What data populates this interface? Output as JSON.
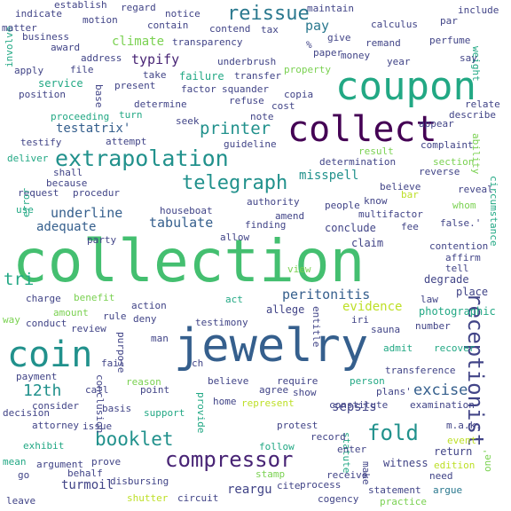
{
  "palette": {
    "yellow": "#bddf26",
    "lime": "#7ad151",
    "green": "#44bf70",
    "teal": "#22a884",
    "cyan": "#21918c",
    "blue": "#2a788e",
    "indigo": "#355f8d",
    "violet": "#414487",
    "purple": "#482475",
    "dark": "#440154"
  },
  "words": [
    {
      "text": "collection",
      "color": "green"
    },
    {
      "text": "jewelry",
      "color": "indigo"
    },
    {
      "text": "coupon",
      "color": "teal"
    },
    {
      "text": "collect",
      "color": "dark"
    },
    {
      "text": "coin",
      "color": "cyan"
    },
    {
      "text": "extrapolation",
      "color": "cyan"
    },
    {
      "text": "compressor",
      "color": "purple"
    },
    {
      "text": "receptionist",
      "color": "violet"
    },
    {
      "text": "telegraph",
      "color": "cyan"
    },
    {
      "text": "reissue",
      "color": "blue"
    },
    {
      "text": "booklet",
      "color": "cyan"
    },
    {
      "text": "fold",
      "color": "cyan"
    },
    {
      "text": "printer",
      "color": "cyan"
    },
    {
      "text": "tri",
      "color": "teal"
    },
    {
      "text": "excise",
      "color": "indigo"
    },
    {
      "text": "12th",
      "color": "cyan"
    },
    {
      "text": "underline",
      "color": "indigo"
    },
    {
      "text": "tabulate",
      "color": "indigo"
    },
    {
      "text": "peritonitis",
      "color": "indigo"
    },
    {
      "text": "typify",
      "color": "purple"
    },
    {
      "text": "misspell",
      "color": "cyan"
    },
    {
      "text": "testatrix'",
      "color": "indigo"
    },
    {
      "text": "adequate",
      "color": "indigo"
    },
    {
      "text": "climate",
      "color": "lime"
    },
    {
      "text": "pay",
      "color": "blue"
    },
    {
      "text": "sepsis",
      "color": "violet"
    },
    {
      "text": "turmoil",
      "color": "violet"
    },
    {
      "text": "reargu",
      "color": "violet"
    },
    {
      "text": "evidence",
      "color": "yellow"
    },
    {
      "text": "photographic",
      "color": "teal"
    },
    {
      "text": "conclude",
      "color": "violet"
    },
    {
      "text": "claim",
      "color": "violet"
    },
    {
      "text": "place",
      "color": "violet"
    },
    {
      "text": "degrade",
      "color": "violet"
    },
    {
      "text": "service",
      "color": "teal"
    },
    {
      "text": "circumstance",
      "color": "teal"
    },
    {
      "text": "cogency",
      "color": "violet"
    },
    {
      "text": "statement",
      "color": "violet"
    },
    {
      "text": "argue",
      "color": "blue"
    },
    {
      "text": "process",
      "color": "violet"
    },
    {
      "text": "cite",
      "color": "violet"
    },
    {
      "text": "circuit",
      "color": "violet"
    },
    {
      "text": "shutter",
      "color": "yellow"
    },
    {
      "text": "leave",
      "color": "violet"
    },
    {
      "text": "go",
      "color": "violet"
    },
    {
      "text": "practice",
      "color": "lime"
    },
    {
      "text": "edition",
      "color": "yellow"
    },
    {
      "text": "one'",
      "color": "lime"
    },
    {
      "text": "need",
      "color": "violet"
    },
    {
      "text": "return",
      "color": "violet"
    },
    {
      "text": "event",
      "color": "yellow"
    },
    {
      "text": "witness",
      "color": "violet"
    },
    {
      "text": "make",
      "color": "violet"
    },
    {
      "text": "statute",
      "color": "teal"
    },
    {
      "text": "enter",
      "color": "violet"
    },
    {
      "text": "receive",
      "color": "violet"
    },
    {
      "text": "record",
      "color": "violet"
    },
    {
      "text": "stamp",
      "color": "lime"
    },
    {
      "text": "follow",
      "color": "teal"
    },
    {
      "text": "disbursing",
      "color": "violet"
    },
    {
      "text": "behalf",
      "color": "violet"
    },
    {
      "text": "prove",
      "color": "violet"
    },
    {
      "text": "argument",
      "color": "violet"
    },
    {
      "text": "mean",
      "color": "teal"
    },
    {
      "text": "exhibit",
      "color": "teal"
    },
    {
      "text": "attorney",
      "color": "violet"
    },
    {
      "text": "decision",
      "color": "violet"
    },
    {
      "text": "issue",
      "color": "violet"
    },
    {
      "text": "consider",
      "color": "violet"
    },
    {
      "text": "payment",
      "color": "violet"
    },
    {
      "text": "call",
      "color": "violet"
    },
    {
      "text": "conclusion",
      "color": "violet"
    },
    {
      "text": "basis",
      "color": "violet"
    },
    {
      "text": "support",
      "color": "teal"
    },
    {
      "text": "provide",
      "color": "teal"
    },
    {
      "text": "home",
      "color": "violet"
    },
    {
      "text": "represent",
      "color": "yellow"
    },
    {
      "text": "protest",
      "color": "violet"
    },
    {
      "text": "show",
      "color": "violet"
    },
    {
      "text": "constitute",
      "color": "violet"
    },
    {
      "text": "examination",
      "color": "violet"
    },
    {
      "text": "m.a.k.",
      "color": "violet"
    },
    {
      "text": "plans'",
      "color": "violet"
    },
    {
      "text": "person",
      "color": "teal"
    },
    {
      "text": "transference",
      "color": "violet"
    },
    {
      "text": "recover",
      "color": "teal"
    },
    {
      "text": "admit",
      "color": "teal"
    },
    {
      "text": "number",
      "color": "violet"
    },
    {
      "text": "sauna",
      "color": "violet"
    },
    {
      "text": "iri",
      "color": "violet"
    },
    {
      "text": "entitle",
      "color": "violet"
    },
    {
      "text": "allege",
      "color": "violet"
    },
    {
      "text": "testimony",
      "color": "violet"
    },
    {
      "text": "deny",
      "color": "violet"
    },
    {
      "text": "action",
      "color": "violet"
    },
    {
      "text": "rule",
      "color": "violet"
    },
    {
      "text": "act",
      "color": "teal"
    },
    {
      "text": "amount",
      "color": "lime"
    },
    {
      "text": "benefit",
      "color": "lime"
    },
    {
      "text": "charge",
      "color": "violet"
    },
    {
      "text": "conduct",
      "color": "violet"
    },
    {
      "text": "review",
      "color": "violet"
    },
    {
      "text": "way",
      "color": "lime"
    },
    {
      "text": "man",
      "color": "violet"
    },
    {
      "text": "purpose",
      "color": "violet"
    },
    {
      "text": "fail",
      "color": "violet"
    },
    {
      "text": "ch",
      "color": "violet"
    },
    {
      "text": "reason",
      "color": "lime"
    },
    {
      "text": "point",
      "color": "violet"
    },
    {
      "text": "believe",
      "color": "violet"
    },
    {
      "text": "agree",
      "color": "violet"
    },
    {
      "text": "require",
      "color": "violet"
    },
    {
      "text": "law",
      "color": "violet"
    },
    {
      "text": "tell",
      "color": "violet"
    },
    {
      "text": "affirm",
      "color": "violet"
    },
    {
      "text": "contention",
      "color": "violet"
    },
    {
      "text": "view",
      "color": "lime"
    },
    {
      "text": "fee",
      "color": "violet"
    },
    {
      "text": "false.'",
      "color": "violet"
    },
    {
      "text": "whom",
      "color": "lime"
    },
    {
      "text": "reveal",
      "color": "violet"
    },
    {
      "text": "reverse",
      "color": "violet"
    },
    {
      "text": "section",
      "color": "lime"
    },
    {
      "text": "ability",
      "color": "lime"
    },
    {
      "text": "complaint",
      "color": "violet"
    },
    {
      "text": "describe",
      "color": "violet"
    },
    {
      "text": "relate",
      "color": "violet"
    },
    {
      "text": "appear",
      "color": "violet"
    },
    {
      "text": "result",
      "color": "lime"
    },
    {
      "text": "determination",
      "color": "violet"
    },
    {
      "text": "believe",
      "color": "violet"
    },
    {
      "text": "know",
      "color": "violet"
    },
    {
      "text": "bar",
      "color": "yellow"
    },
    {
      "text": "multifactor",
      "color": "violet"
    },
    {
      "text": "people",
      "color": "violet"
    },
    {
      "text": "amend",
      "color": "violet"
    },
    {
      "text": "authority",
      "color": "violet"
    },
    {
      "text": "finding",
      "color": "violet"
    },
    {
      "text": "allow",
      "color": "violet"
    },
    {
      "text": "houseboat",
      "color": "violet"
    },
    {
      "text": "party",
      "color": "violet"
    },
    {
      "text": "request",
      "color": "violet"
    },
    {
      "text": "procedur",
      "color": "violet"
    },
    {
      "text": "because",
      "color": "violet"
    },
    {
      "text": "shall",
      "color": "violet"
    },
    {
      "text": "deliver",
      "color": "teal"
    },
    {
      "text": "use",
      "color": "teal"
    },
    {
      "text": "error",
      "color": "teal"
    },
    {
      "text": "testify",
      "color": "violet"
    },
    {
      "text": "attempt",
      "color": "violet"
    },
    {
      "text": "proceeding",
      "color": "teal"
    },
    {
      "text": "turn",
      "color": "teal"
    },
    {
      "text": "seek",
      "color": "violet"
    },
    {
      "text": "guideline",
      "color": "violet"
    },
    {
      "text": "note",
      "color": "violet"
    },
    {
      "text": "determine",
      "color": "violet"
    },
    {
      "text": "cost",
      "color": "violet"
    },
    {
      "text": "refuse",
      "color": "violet"
    },
    {
      "text": "position",
      "color": "violet"
    },
    {
      "text": "base",
      "color": "violet"
    },
    {
      "text": "present",
      "color": "violet"
    },
    {
      "text": "factor",
      "color": "violet"
    },
    {
      "text": "squander",
      "color": "violet"
    },
    {
      "text": "failure",
      "color": "teal"
    },
    {
      "text": "transfer",
      "color": "violet"
    },
    {
      "text": "copia",
      "color": "violet"
    },
    {
      "text": "property",
      "color": "lime"
    },
    {
      "text": "apply",
      "color": "violet"
    },
    {
      "text": "file",
      "color": "violet"
    },
    {
      "text": "take",
      "color": "violet"
    },
    {
      "text": "underbrush",
      "color": "violet"
    },
    {
      "text": "year",
      "color": "violet"
    },
    {
      "text": "weight",
      "color": "teal"
    },
    {
      "text": "say",
      "color": "violet"
    },
    {
      "text": "money",
      "color": "violet"
    },
    {
      "text": "paper",
      "color": "violet"
    },
    {
      "text": "%",
      "color": "violet"
    },
    {
      "text": "remand",
      "color": "violet"
    },
    {
      "text": "perfume",
      "color": "violet"
    },
    {
      "text": "give",
      "color": "violet"
    },
    {
      "text": "involve",
      "color": "teal"
    },
    {
      "text": "address",
      "color": "violet"
    },
    {
      "text": "award",
      "color": "violet"
    },
    {
      "text": "business",
      "color": "violet"
    },
    {
      "text": "matter",
      "color": "violet"
    },
    {
      "text": "indicate",
      "color": "violet"
    },
    {
      "text": "establish",
      "color": "violet"
    },
    {
      "text": "motion",
      "color": "violet"
    },
    {
      "text": "regard",
      "color": "violet"
    },
    {
      "text": "notice",
      "color": "violet"
    },
    {
      "text": "contain",
      "color": "violet"
    },
    {
      "text": "contend",
      "color": "violet"
    },
    {
      "text": "transparency",
      "color": "violet"
    },
    {
      "text": "tax",
      "color": "violet"
    },
    {
      "text": "maintain",
      "color": "violet"
    },
    {
      "text": "calculus",
      "color": "violet"
    },
    {
      "text": "par",
      "color": "violet"
    },
    {
      "text": "include",
      "color": "violet"
    }
  ]
}
